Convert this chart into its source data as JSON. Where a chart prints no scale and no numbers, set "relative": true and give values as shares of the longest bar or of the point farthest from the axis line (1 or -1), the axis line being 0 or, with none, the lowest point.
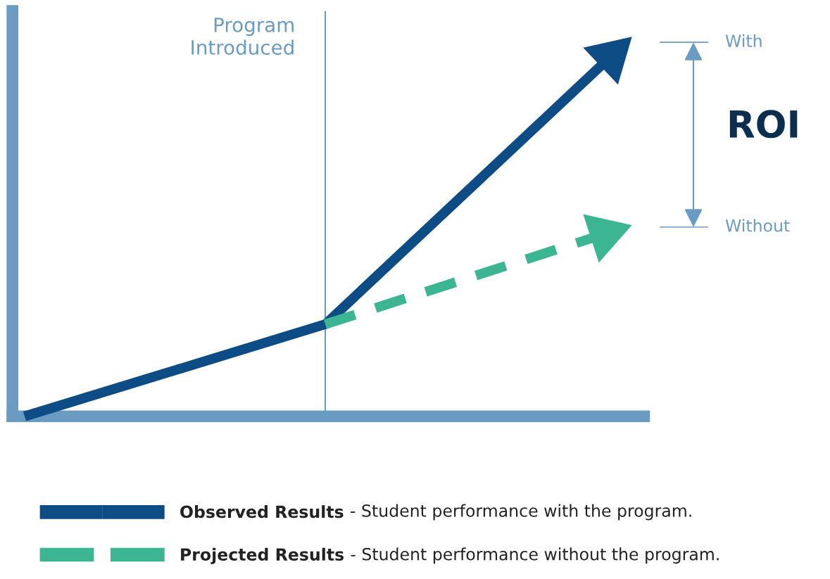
{
  "chart_data": {
    "type": "line",
    "relative": true,
    "categories": [
      null,
      null,
      null
    ],
    "series": [
      {
        "name": "Observed Results",
        "color": "#0d4c85",
        "values": [
          0,
          0.246,
          1
        ],
        "line_style": "solid"
      },
      {
        "name": "Projected Results",
        "color": "#3bb592",
        "values": [
          null,
          0.246,
          0.506
        ],
        "line_style": "dashed"
      }
    ],
    "annotations": [
      "Program\nIntroduced",
      "With",
      "Without",
      "ROI",
      "- Student performance with the program.",
      "- Student performance without the program."
    ],
    "legend": "bottom",
    "marker": "none"
  }
}
